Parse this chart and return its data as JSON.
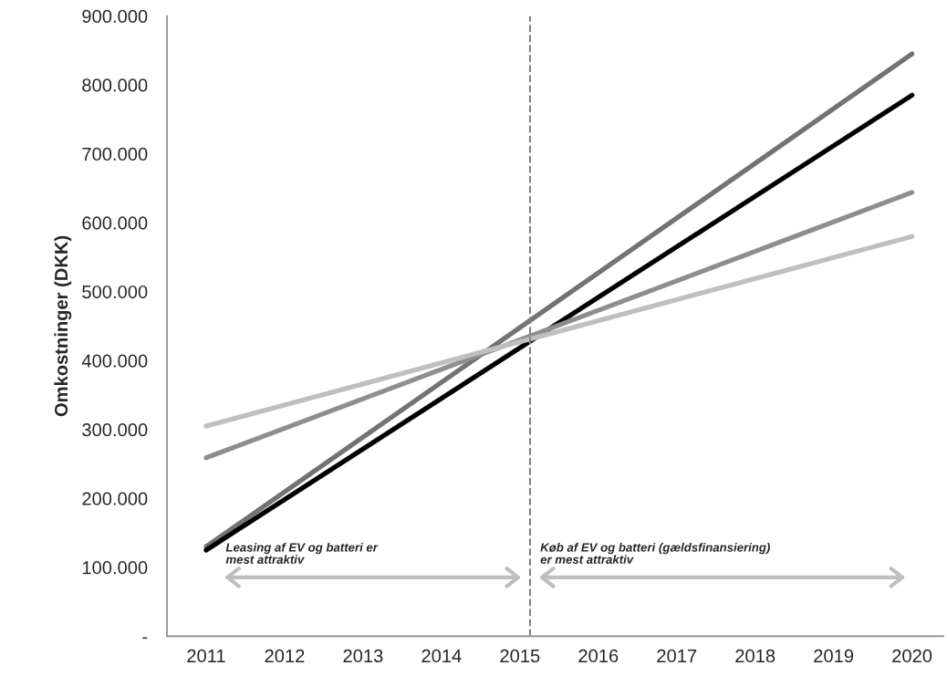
{
  "chart_data": {
    "type": "line",
    "ylabel": "Omkostninger (DKK)",
    "x": [
      2011,
      2020
    ],
    "series": [
      {
        "values": [
          130000,
          845000
        ],
        "color": "#737373"
      },
      {
        "values": [
          125000,
          785000
        ],
        "color": "#000000"
      },
      {
        "values": [
          259000,
          644000
        ],
        "color": "#8c8e90"
      },
      {
        "values": [
          305000,
          580000
        ],
        "color": "#bfbfbf"
      }
    ],
    "xlim": [
      2010.5,
      2020.4
    ],
    "xticks": [
      2011,
      2012,
      2013,
      2014,
      2015,
      2016,
      2017,
      2018,
      2019,
      2020
    ],
    "ylim": [
      0,
      900000
    ],
    "yticks": [
      {
        "value": 0,
        "label": "-"
      },
      {
        "value": 100000,
        "label": "100.000"
      },
      {
        "value": 200000,
        "label": "200.000"
      },
      {
        "value": 300000,
        "label": "300.000"
      },
      {
        "value": 400000,
        "label": "400.000"
      },
      {
        "value": 500000,
        "label": "500.000"
      },
      {
        "value": 600000,
        "label": "600.000"
      },
      {
        "value": 700000,
        "label": "700.000"
      },
      {
        "value": 800000,
        "label": "800.000"
      },
      {
        "value": 900000,
        "label": "900.000"
      }
    ],
    "ref_lines": [
      {
        "axis": "x",
        "value": 2015.13,
        "color": "#808080",
        "line_style": "dashed"
      }
    ],
    "annotations": [
      "Leasing af EV og batteri er\nmest attraktiv",
      "Køb af EV og batteri (gældsfinansiering)\ner mest attraktiv"
    ],
    "grid": false,
    "marker": "none",
    "line_style": "solid"
  }
}
